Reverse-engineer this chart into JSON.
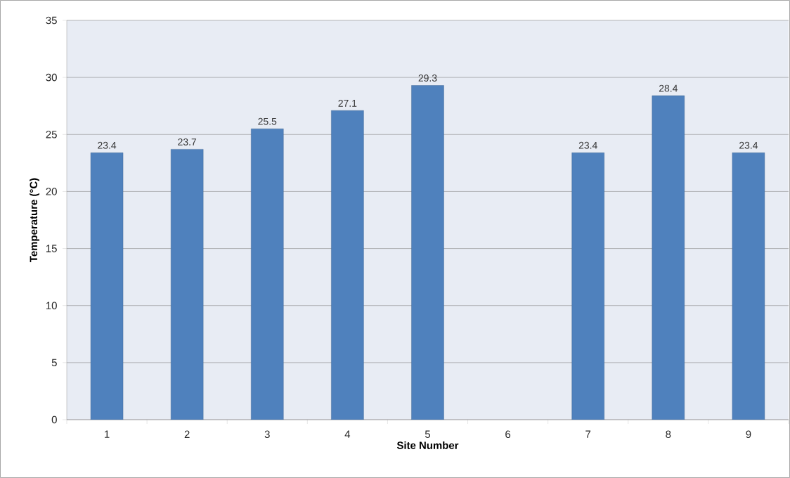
{
  "chart_data": {
    "type": "bar",
    "xlabel": "Site Number",
    "ylabel": "Temperature (°C)",
    "categories": [
      "1",
      "2",
      "3",
      "4",
      "5",
      "6",
      "7",
      "8",
      "9"
    ],
    "values": [
      23.4,
      23.7,
      25.5,
      27.1,
      29.3,
      null,
      23.4,
      28.4,
      23.4
    ],
    "color": "#4f81bd",
    "data_labels": true,
    "grid": "y",
    "ylim": [
      0,
      35
    ],
    "yticks": [
      0,
      5,
      10,
      15,
      20,
      25,
      30,
      35
    ]
  }
}
